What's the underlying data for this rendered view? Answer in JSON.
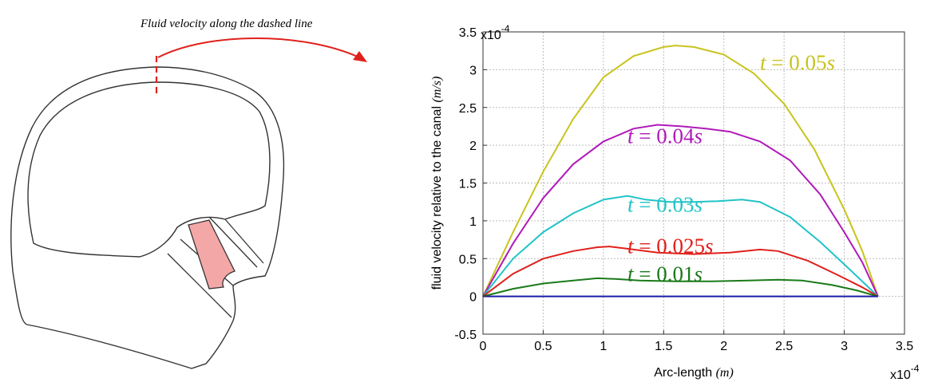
{
  "diagram": {
    "caption": "Fluid velocity along the dashed line",
    "stroke_color": "#333333",
    "highlight_color": "#f4a7a7",
    "arrow_color": "#e0211b"
  },
  "chart_data": {
    "type": "line",
    "xlabel": "Arc-length",
    "xlabel_unit": "(m)",
    "ylabel": "fluid velocity relative to the canal",
    "ylabel_unit": "(m/s)",
    "x_exponent": "x10",
    "x_exponent_power": "-4",
    "y_exponent": "x10",
    "y_exponent_power": "-4",
    "xlim": [
      0,
      3.5
    ],
    "ylim": [
      -0.5,
      3.5
    ],
    "x_ticks": [
      0,
      0.5,
      1,
      1.5,
      2,
      2.5,
      3,
      3.5
    ],
    "y_ticks": [
      -0.5,
      0,
      0.5,
      1,
      1.5,
      2,
      2.5,
      3,
      3.5
    ],
    "x_tick_labels": [
      "0",
      "0.5",
      "1",
      "1.5",
      "2",
      "2.5",
      "3",
      "3.5"
    ],
    "y_tick_labels": [
      "-0.5",
      "0",
      "0.5",
      "1",
      "1.5",
      "2",
      "2.5",
      "3",
      "3.5"
    ],
    "grid": true,
    "series": [
      {
        "name": "t = 0.05s",
        "label_var": "t",
        "label_eq": " = 0.05",
        "label_unit": "s",
        "color": "#c8c41e",
        "label_pos": [
          2.3,
          3.0
        ],
        "x": [
          0,
          0.25,
          0.5,
          0.75,
          1.0,
          1.25,
          1.5,
          1.6,
          1.75,
          2.0,
          2.25,
          2.5,
          2.75,
          3.0,
          3.15,
          3.28
        ],
        "y": [
          0,
          0.85,
          1.65,
          2.35,
          2.9,
          3.18,
          3.3,
          3.32,
          3.3,
          3.2,
          2.95,
          2.55,
          1.95,
          1.15,
          0.6,
          0
        ]
      },
      {
        "name": "t = 0.04s",
        "label_var": "t",
        "label_eq": " = 0.04",
        "label_unit": "s",
        "color": "#b01ab8",
        "label_pos": [
          1.2,
          2.03
        ],
        "x": [
          0,
          0.25,
          0.5,
          0.75,
          1.0,
          1.25,
          1.45,
          1.65,
          1.85,
          2.05,
          2.3,
          2.55,
          2.8,
          3.0,
          3.15,
          3.28
        ],
        "y": [
          0,
          0.7,
          1.3,
          1.75,
          2.05,
          2.22,
          2.27,
          2.25,
          2.22,
          2.18,
          2.05,
          1.8,
          1.35,
          0.85,
          0.45,
          0
        ]
      },
      {
        "name": "t = 0.03s",
        "label_var": "t",
        "label_eq": " = 0.03",
        "label_unit": "s",
        "color": "#22c3c8",
        "label_pos": [
          1.2,
          1.12
        ],
        "x": [
          0,
          0.25,
          0.5,
          0.75,
          1.0,
          1.2,
          1.35,
          1.55,
          1.75,
          1.95,
          2.15,
          2.3,
          2.55,
          2.8,
          3.05,
          3.28
        ],
        "y": [
          0,
          0.5,
          0.85,
          1.1,
          1.28,
          1.33,
          1.28,
          1.25,
          1.25,
          1.26,
          1.28,
          1.25,
          1.05,
          0.72,
          0.35,
          0
        ]
      },
      {
        "name": "t = 0.025s",
        "label_var": "t",
        "label_eq": " = 0.025",
        "label_unit": "s",
        "color": "#e0211b",
        "label_pos": [
          1.2,
          0.57
        ],
        "x": [
          0,
          0.25,
          0.5,
          0.75,
          0.95,
          1.05,
          1.2,
          1.45,
          1.75,
          2.05,
          2.3,
          2.45,
          2.7,
          2.95,
          3.15,
          3.28
        ],
        "y": [
          0,
          0.3,
          0.5,
          0.6,
          0.65,
          0.66,
          0.63,
          0.58,
          0.56,
          0.58,
          0.62,
          0.6,
          0.47,
          0.28,
          0.12,
          0
        ]
      },
      {
        "name": "t = 0.01s",
        "label_var": "t",
        "label_eq": " = 0.01",
        "label_unit": "s",
        "color": "#1a7a1a",
        "label_pos": [
          1.2,
          0.2
        ],
        "x": [
          0,
          0.25,
          0.5,
          0.75,
          0.95,
          1.1,
          1.3,
          1.6,
          1.9,
          2.2,
          2.45,
          2.65,
          2.9,
          3.1,
          3.28
        ],
        "y": [
          0,
          0.1,
          0.17,
          0.21,
          0.24,
          0.23,
          0.21,
          0.2,
          0.2,
          0.21,
          0.22,
          0.21,
          0.15,
          0.08,
          0
        ]
      },
      {
        "name": "",
        "color": "#1a1aa8",
        "x": [
          0,
          3.28
        ],
        "y": [
          0,
          0
        ]
      }
    ]
  }
}
